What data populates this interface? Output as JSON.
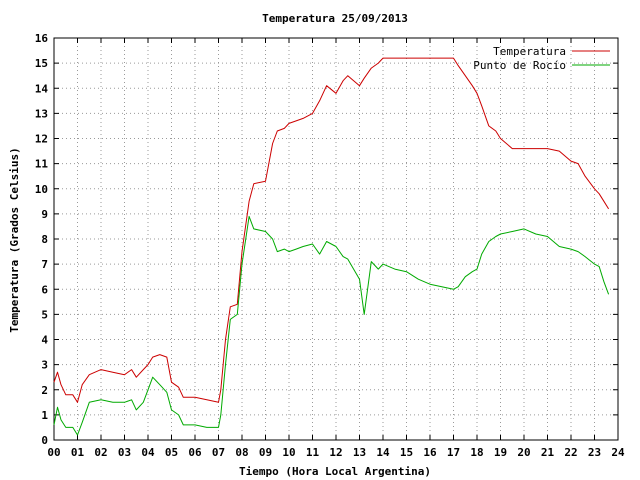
{
  "chart_data": {
    "type": "line",
    "title": "Temperatura 25/09/2013",
    "xlabel": "Tiempo (Hora Local Argentina)",
    "ylabel": "Temperatura (Grados Celsius)",
    "xlim": [
      0,
      24
    ],
    "ylim": [
      0,
      16
    ],
    "x_ticks": [
      "00",
      "01",
      "02",
      "03",
      "04",
      "05",
      "06",
      "07",
      "08",
      "09",
      "10",
      "11",
      "12",
      "13",
      "14",
      "15",
      "16",
      "17",
      "18",
      "19",
      "20",
      "21",
      "22",
      "23",
      "24"
    ],
    "y_ticks": [
      "0",
      "1",
      "2",
      "3",
      "4",
      "5",
      "6",
      "7",
      "8",
      "9",
      "10",
      "11",
      "12",
      "13",
      "14",
      "15",
      "16"
    ],
    "grid": true,
    "legend_position": "top-right",
    "series": [
      {
        "name": "Temperatura",
        "color": "#cc0000",
        "points": [
          [
            0.0,
            2.3
          ],
          [
            0.15,
            2.7
          ],
          [
            0.3,
            2.2
          ],
          [
            0.5,
            1.8
          ],
          [
            0.8,
            1.8
          ],
          [
            1.0,
            1.5
          ],
          [
            1.2,
            2.2
          ],
          [
            1.5,
            2.6
          ],
          [
            2.0,
            2.8
          ],
          [
            2.5,
            2.7
          ],
          [
            3.0,
            2.6
          ],
          [
            3.3,
            2.8
          ],
          [
            3.5,
            2.5
          ],
          [
            3.8,
            2.8
          ],
          [
            4.0,
            3.0
          ],
          [
            4.2,
            3.3
          ],
          [
            4.5,
            3.4
          ],
          [
            4.8,
            3.3
          ],
          [
            5.0,
            2.3
          ],
          [
            5.3,
            2.1
          ],
          [
            5.5,
            1.7
          ],
          [
            6.0,
            1.7
          ],
          [
            6.5,
            1.6
          ],
          [
            7.0,
            1.5
          ],
          [
            7.1,
            2.0
          ],
          [
            7.3,
            4.0
          ],
          [
            7.5,
            5.3
          ],
          [
            7.8,
            5.4
          ],
          [
            8.0,
            7.5
          ],
          [
            8.3,
            9.5
          ],
          [
            8.5,
            10.2
          ],
          [
            9.0,
            10.3
          ],
          [
            9.3,
            11.8
          ],
          [
            9.5,
            12.3
          ],
          [
            9.8,
            12.4
          ],
          [
            10.0,
            12.6
          ],
          [
            10.3,
            12.7
          ],
          [
            10.6,
            12.8
          ],
          [
            11.0,
            13.0
          ],
          [
            11.3,
            13.5
          ],
          [
            11.6,
            14.1
          ],
          [
            12.0,
            13.8
          ],
          [
            12.3,
            14.3
          ],
          [
            12.5,
            14.5
          ],
          [
            13.0,
            14.1
          ],
          [
            13.2,
            14.4
          ],
          [
            13.5,
            14.8
          ],
          [
            13.8,
            15.0
          ],
          [
            14.0,
            15.2
          ],
          [
            14.5,
            15.2
          ],
          [
            15.0,
            15.2
          ],
          [
            15.5,
            15.2
          ],
          [
            16.0,
            15.2
          ],
          [
            16.5,
            15.2
          ],
          [
            17.0,
            15.2
          ],
          [
            17.2,
            14.9
          ],
          [
            17.5,
            14.5
          ],
          [
            17.8,
            14.1
          ],
          [
            18.0,
            13.8
          ],
          [
            18.2,
            13.3
          ],
          [
            18.5,
            12.5
          ],
          [
            18.8,
            12.3
          ],
          [
            19.0,
            12.0
          ],
          [
            19.5,
            11.6
          ],
          [
            20.0,
            11.6
          ],
          [
            20.5,
            11.6
          ],
          [
            21.0,
            11.6
          ],
          [
            21.5,
            11.5
          ],
          [
            22.0,
            11.1
          ],
          [
            22.3,
            11.0
          ],
          [
            22.6,
            10.5
          ],
          [
            23.0,
            10.0
          ],
          [
            23.2,
            9.8
          ],
          [
            23.4,
            9.5
          ],
          [
            23.6,
            9.2
          ]
        ]
      },
      {
        "name": "Punto de Rocío",
        "color": "#00aa00",
        "points": [
          [
            0.0,
            0.6
          ],
          [
            0.15,
            1.3
          ],
          [
            0.3,
            0.8
          ],
          [
            0.5,
            0.5
          ],
          [
            0.8,
            0.5
          ],
          [
            1.0,
            0.2
          ],
          [
            1.2,
            0.7
          ],
          [
            1.5,
            1.5
          ],
          [
            2.0,
            1.6
          ],
          [
            2.5,
            1.5
          ],
          [
            3.0,
            1.5
          ],
          [
            3.3,
            1.6
          ],
          [
            3.5,
            1.2
          ],
          [
            3.8,
            1.5
          ],
          [
            4.0,
            2.0
          ],
          [
            4.2,
            2.5
          ],
          [
            4.5,
            2.2
          ],
          [
            4.8,
            1.9
          ],
          [
            5.0,
            1.2
          ],
          [
            5.3,
            1.0
          ],
          [
            5.5,
            0.6
          ],
          [
            6.0,
            0.6
          ],
          [
            6.5,
            0.5
          ],
          [
            7.0,
            0.5
          ],
          [
            7.1,
            1.0
          ],
          [
            7.3,
            3.0
          ],
          [
            7.5,
            4.8
          ],
          [
            7.8,
            5.0
          ],
          [
            8.0,
            7.0
          ],
          [
            8.3,
            8.9
          ],
          [
            8.5,
            8.4
          ],
          [
            9.0,
            8.3
          ],
          [
            9.3,
            8.0
          ],
          [
            9.5,
            7.5
          ],
          [
            9.8,
            7.6
          ],
          [
            10.0,
            7.5
          ],
          [
            10.3,
            7.6
          ],
          [
            10.6,
            7.7
          ],
          [
            11.0,
            7.8
          ],
          [
            11.3,
            7.4
          ],
          [
            11.6,
            7.9
          ],
          [
            12.0,
            7.7
          ],
          [
            12.3,
            7.3
          ],
          [
            12.5,
            7.2
          ],
          [
            13.0,
            6.4
          ],
          [
            13.2,
            5.0
          ],
          [
            13.5,
            7.1
          ],
          [
            13.8,
            6.8
          ],
          [
            14.0,
            7.0
          ],
          [
            14.5,
            6.8
          ],
          [
            15.0,
            6.7
          ],
          [
            15.5,
            6.4
          ],
          [
            16.0,
            6.2
          ],
          [
            16.5,
            6.1
          ],
          [
            17.0,
            6.0
          ],
          [
            17.2,
            6.1
          ],
          [
            17.5,
            6.5
          ],
          [
            17.8,
            6.7
          ],
          [
            18.0,
            6.8
          ],
          [
            18.2,
            7.4
          ],
          [
            18.5,
            7.9
          ],
          [
            18.8,
            8.1
          ],
          [
            19.0,
            8.2
          ],
          [
            19.5,
            8.3
          ],
          [
            20.0,
            8.4
          ],
          [
            20.5,
            8.2
          ],
          [
            21.0,
            8.1
          ],
          [
            21.5,
            7.7
          ],
          [
            22.0,
            7.6
          ],
          [
            22.3,
            7.5
          ],
          [
            22.6,
            7.3
          ],
          [
            23.0,
            7.0
          ],
          [
            23.2,
            6.9
          ],
          [
            23.4,
            6.3
          ],
          [
            23.6,
            5.8
          ]
        ]
      }
    ]
  }
}
